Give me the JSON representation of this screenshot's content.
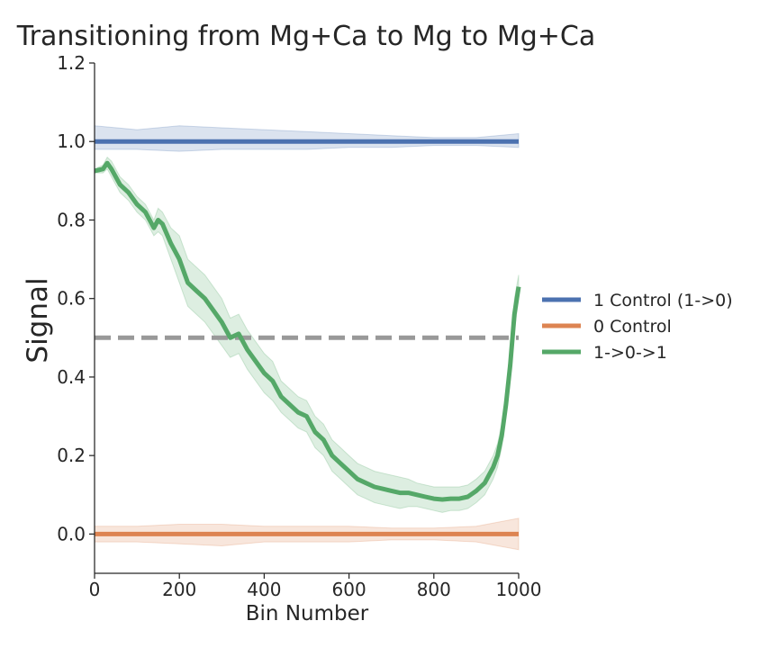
{
  "chart_data": {
    "type": "line",
    "title": "Transitioning from Mg+Ca to Mg to Mg+Ca",
    "xlabel": "Bin Number",
    "ylabel": "Signal",
    "xlim": [
      0,
      1000
    ],
    "ylim": [
      -0.1,
      1.2
    ],
    "xticks": [
      "0",
      "200",
      "400",
      "600",
      "800",
      "1000"
    ],
    "yticks": [
      "0.0",
      "0.2",
      "0.4",
      "0.6",
      "0.8",
      "1.0",
      "1.2"
    ],
    "grid": false,
    "legend_position": "right",
    "reference_line": {
      "y": 0.5,
      "style": "dashed",
      "color": "#999999"
    },
    "series": [
      {
        "name": "1 Control (1->0)",
        "color": "#4c72b0",
        "x": [
          0,
          100,
          200,
          300,
          400,
          500,
          600,
          700,
          800,
          900,
          1000
        ],
        "y": [
          1.0,
          1.0,
          1.0,
          1.0,
          1.0,
          1.0,
          1.0,
          1.0,
          1.0,
          1.0,
          1.0
        ],
        "band_lower": [
          0.98,
          0.98,
          0.975,
          0.98,
          0.98,
          0.98,
          0.985,
          0.985,
          0.99,
          0.99,
          0.985
        ],
        "band_upper": [
          1.04,
          1.03,
          1.04,
          1.035,
          1.03,
          1.025,
          1.02,
          1.015,
          1.01,
          1.01,
          1.02
        ]
      },
      {
        "name": "0 Control",
        "color": "#dd8452",
        "x": [
          0,
          100,
          200,
          300,
          400,
          500,
          600,
          700,
          800,
          900,
          1000
        ],
        "y": [
          0.0,
          0.0,
          0.0,
          0.0,
          0.0,
          0.0,
          0.0,
          0.0,
          0.0,
          0.0,
          0.0
        ],
        "band_lower": [
          -0.02,
          -0.02,
          -0.025,
          -0.03,
          -0.02,
          -0.02,
          -0.02,
          -0.015,
          -0.015,
          -0.02,
          -0.04
        ],
        "band_upper": [
          0.02,
          0.02,
          0.025,
          0.025,
          0.02,
          0.02,
          0.02,
          0.015,
          0.015,
          0.02,
          0.04
        ]
      },
      {
        "name": "1->0->1",
        "color": "#55a868",
        "x": [
          0,
          20,
          30,
          40,
          60,
          80,
          100,
          120,
          140,
          150,
          160,
          180,
          200,
          220,
          240,
          260,
          280,
          300,
          320,
          340,
          360,
          380,
          400,
          420,
          440,
          460,
          480,
          500,
          520,
          540,
          560,
          580,
          600,
          620,
          640,
          660,
          680,
          700,
          720,
          740,
          760,
          780,
          800,
          820,
          840,
          860,
          880,
          900,
          920,
          940,
          950,
          960,
          970,
          980,
          990,
          1000
        ],
        "y": [
          0.925,
          0.93,
          0.945,
          0.93,
          0.89,
          0.87,
          0.84,
          0.82,
          0.78,
          0.8,
          0.79,
          0.74,
          0.7,
          0.64,
          0.62,
          0.6,
          0.57,
          0.54,
          0.5,
          0.51,
          0.47,
          0.44,
          0.41,
          0.39,
          0.35,
          0.33,
          0.31,
          0.3,
          0.26,
          0.24,
          0.2,
          0.18,
          0.16,
          0.14,
          0.13,
          0.12,
          0.115,
          0.11,
          0.105,
          0.105,
          0.1,
          0.095,
          0.09,
          0.088,
          0.09,
          0.09,
          0.095,
          0.11,
          0.13,
          0.17,
          0.2,
          0.25,
          0.33,
          0.43,
          0.56,
          0.63
        ],
        "band_lower": [
          0.92,
          0.92,
          0.93,
          0.91,
          0.87,
          0.85,
          0.82,
          0.8,
          0.76,
          0.77,
          0.76,
          0.7,
          0.64,
          0.58,
          0.56,
          0.54,
          0.51,
          0.48,
          0.45,
          0.46,
          0.42,
          0.39,
          0.36,
          0.34,
          0.31,
          0.29,
          0.27,
          0.26,
          0.22,
          0.2,
          0.16,
          0.14,
          0.12,
          0.1,
          0.09,
          0.08,
          0.075,
          0.07,
          0.065,
          0.07,
          0.07,
          0.065,
          0.06,
          0.055,
          0.06,
          0.06,
          0.065,
          0.08,
          0.1,
          0.14,
          0.17,
          0.22,
          0.3,
          0.4,
          0.52,
          0.6
        ],
        "band_upper": [
          0.93,
          0.94,
          0.96,
          0.95,
          0.91,
          0.89,
          0.86,
          0.84,
          0.8,
          0.83,
          0.82,
          0.78,
          0.76,
          0.7,
          0.68,
          0.66,
          0.63,
          0.6,
          0.55,
          0.56,
          0.52,
          0.49,
          0.46,
          0.44,
          0.39,
          0.37,
          0.35,
          0.34,
          0.3,
          0.28,
          0.24,
          0.22,
          0.2,
          0.18,
          0.17,
          0.16,
          0.155,
          0.15,
          0.145,
          0.14,
          0.13,
          0.125,
          0.12,
          0.12,
          0.12,
          0.12,
          0.125,
          0.14,
          0.16,
          0.2,
          0.23,
          0.28,
          0.36,
          0.46,
          0.6,
          0.66
        ]
      }
    ]
  }
}
